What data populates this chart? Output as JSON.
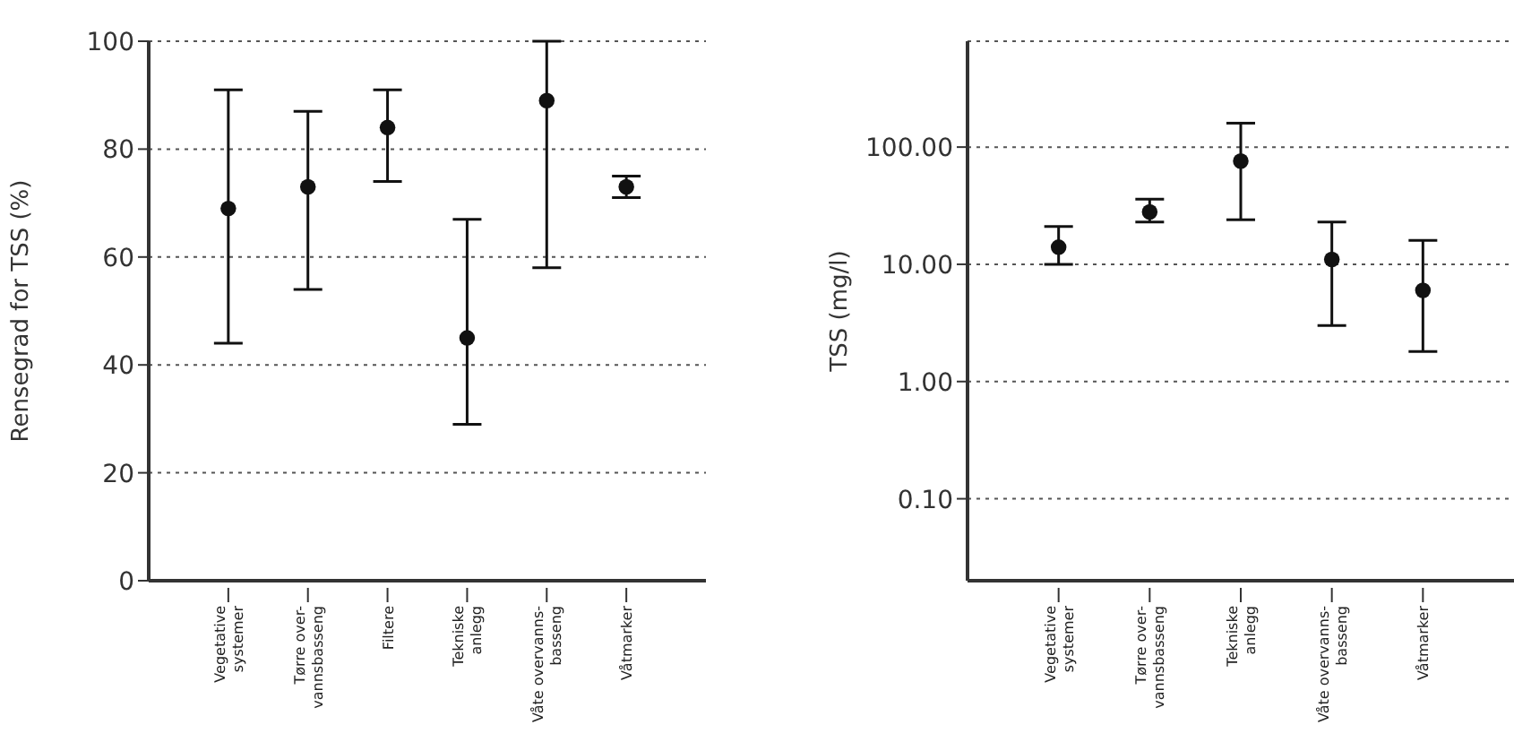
{
  "chart_data": [
    {
      "type": "scatter",
      "ylabel": "Rensegrad for TSS (%)",
      "categories": [
        "Vegetative\nsystemer",
        "Tørre over-\nvannsbasseng",
        "Filtere",
        "Tekniske\nanlegg",
        "Våte overvanns-\nbasseng",
        "Våtmarker"
      ],
      "values": [
        69,
        73,
        84,
        45,
        89,
        73
      ],
      "errors": [
        [
          44,
          91
        ],
        [
          54,
          87
        ],
        [
          74,
          91
        ],
        [
          29,
          67
        ],
        [
          58,
          100
        ],
        [
          71,
          75
        ]
      ],
      "color": "#111111",
      "ylim": [
        0,
        100
      ],
      "yticks": [
        0,
        20,
        40,
        60,
        80,
        100
      ],
      "grid": "y",
      "marker": "circle"
    },
    {
      "type": "scatter",
      "ylabel": "TSS (mg/l)",
      "categories": [
        "Vegetative\nsystemer",
        "Tørre over-\nvannsbasseng",
        "Tekniske\nanlegg",
        "Våte overvanns-\nbasseng",
        "Våtmarker"
      ],
      "values": [
        14,
        28,
        76,
        11,
        6
      ],
      "errors": [
        [
          10,
          21
        ],
        [
          23,
          36
        ],
        [
          24,
          160
        ],
        [
          3,
          23
        ],
        [
          1.8,
          16
        ]
      ],
      "color": "#111111",
      "log": true,
      "ylim": [
        0.02,
        800
      ],
      "yticks": [
        {
          "value": 0.1,
          "label": "0.10"
        },
        {
          "value": 1,
          "label": "1.00"
        },
        {
          "value": 10,
          "label": "10.00"
        },
        {
          "value": 100,
          "label": "100.00"
        }
      ],
      "grid": "y",
      "marker": "circle"
    }
  ]
}
